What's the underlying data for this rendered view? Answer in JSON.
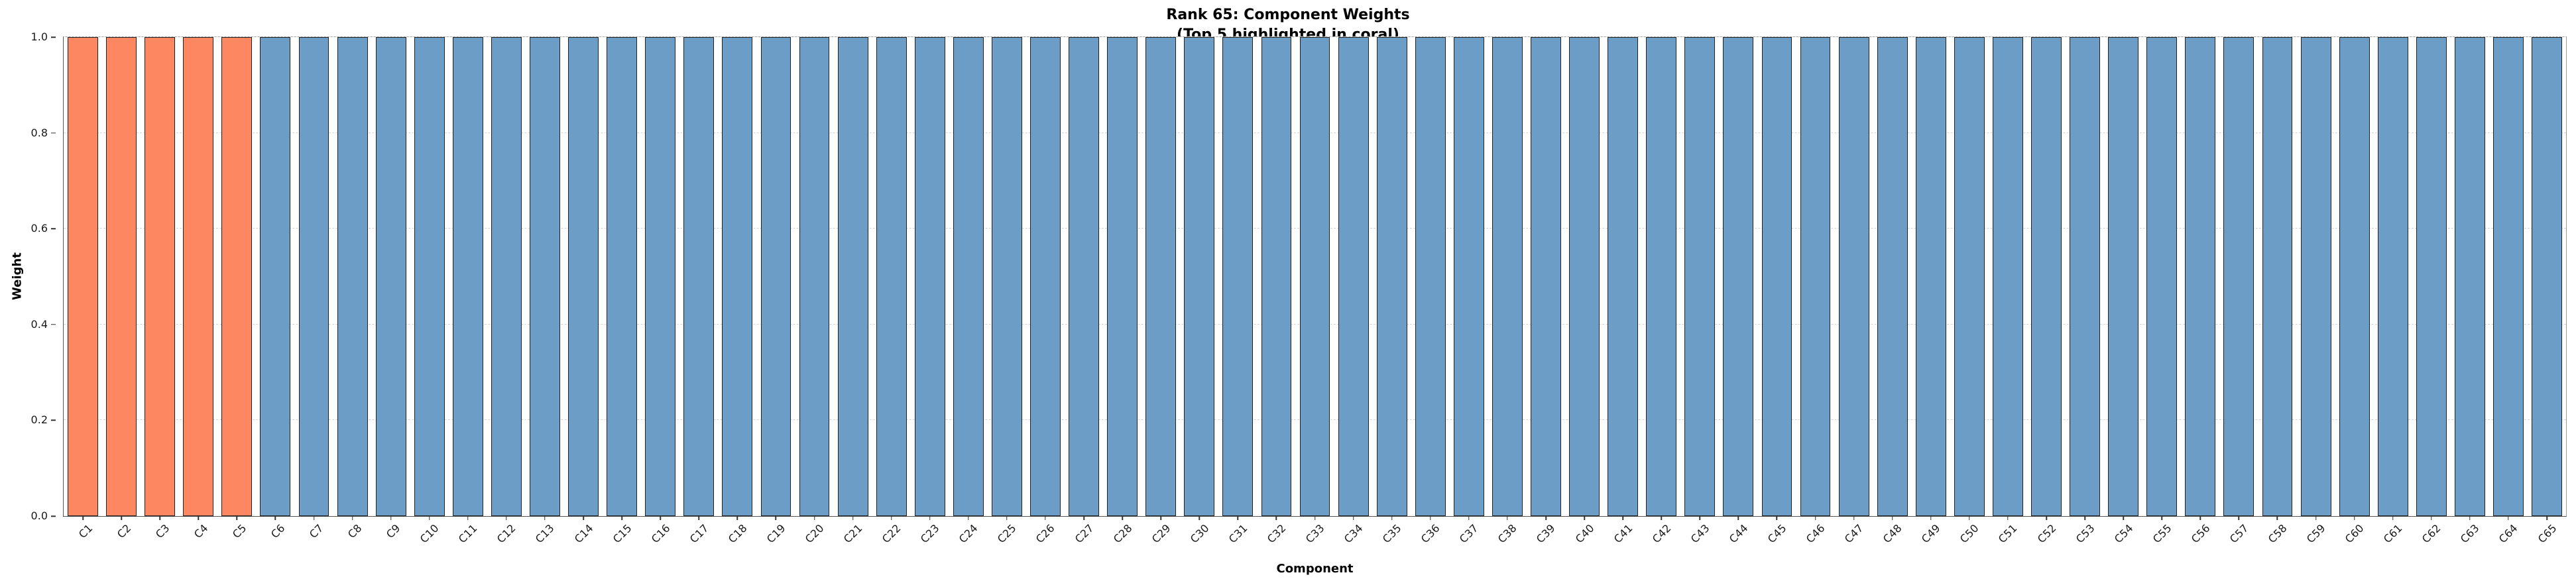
{
  "chart_data": {
    "type": "bar",
    "title": "Rank 65: Component Weights",
    "subtitle": "(Top 5 highlighted in coral)",
    "xlabel": "Component",
    "ylabel": "Weight",
    "ylim": [
      0,
      1.0
    ],
    "yticks": [
      0.0,
      0.2,
      0.4,
      0.6,
      0.8,
      1.0
    ],
    "ytick_labels": [
      "0.0",
      "0.2",
      "0.4",
      "0.6",
      "0.8",
      "1.0"
    ],
    "grid": "horizontal-dashed",
    "legend": "none",
    "highlight_count": 5,
    "colors": {
      "highlight": "#FC8761",
      "default": "#6B9DC7",
      "edge": "#222222"
    },
    "categories": [
      "C1",
      "C2",
      "C3",
      "C4",
      "C5",
      "C6",
      "C7",
      "C8",
      "C9",
      "C10",
      "C11",
      "C12",
      "C13",
      "C14",
      "C15",
      "C16",
      "C17",
      "C18",
      "C19",
      "C20",
      "C21",
      "C22",
      "C23",
      "C24",
      "C25",
      "C26",
      "C27",
      "C28",
      "C29",
      "C30",
      "C31",
      "C32",
      "C33",
      "C34",
      "C35",
      "C36",
      "C37",
      "C38",
      "C39",
      "C40",
      "C41",
      "C42",
      "C43",
      "C44",
      "C45",
      "C46",
      "C47",
      "C48",
      "C49",
      "C50",
      "C51",
      "C52",
      "C53",
      "C54",
      "C55",
      "C56",
      "C57",
      "C58",
      "C59",
      "C60",
      "C61",
      "C62",
      "C63",
      "C64",
      "C65"
    ],
    "values": [
      1.0,
      1.0,
      1.0,
      1.0,
      1.0,
      1.0,
      1.0,
      1.0,
      1.0,
      1.0,
      1.0,
      1.0,
      1.0,
      1.0,
      1.0,
      1.0,
      1.0,
      1.0,
      1.0,
      1.0,
      1.0,
      1.0,
      1.0,
      1.0,
      1.0,
      1.0,
      1.0,
      1.0,
      1.0,
      1.0,
      1.0,
      1.0,
      1.0,
      1.0,
      1.0,
      1.0,
      1.0,
      1.0,
      1.0,
      1.0,
      1.0,
      1.0,
      1.0,
      1.0,
      1.0,
      1.0,
      1.0,
      1.0,
      1.0,
      1.0,
      1.0,
      1.0,
      1.0,
      1.0,
      1.0,
      1.0,
      1.0,
      1.0,
      1.0,
      1.0,
      1.0,
      1.0,
      1.0,
      1.0,
      1.0
    ]
  }
}
